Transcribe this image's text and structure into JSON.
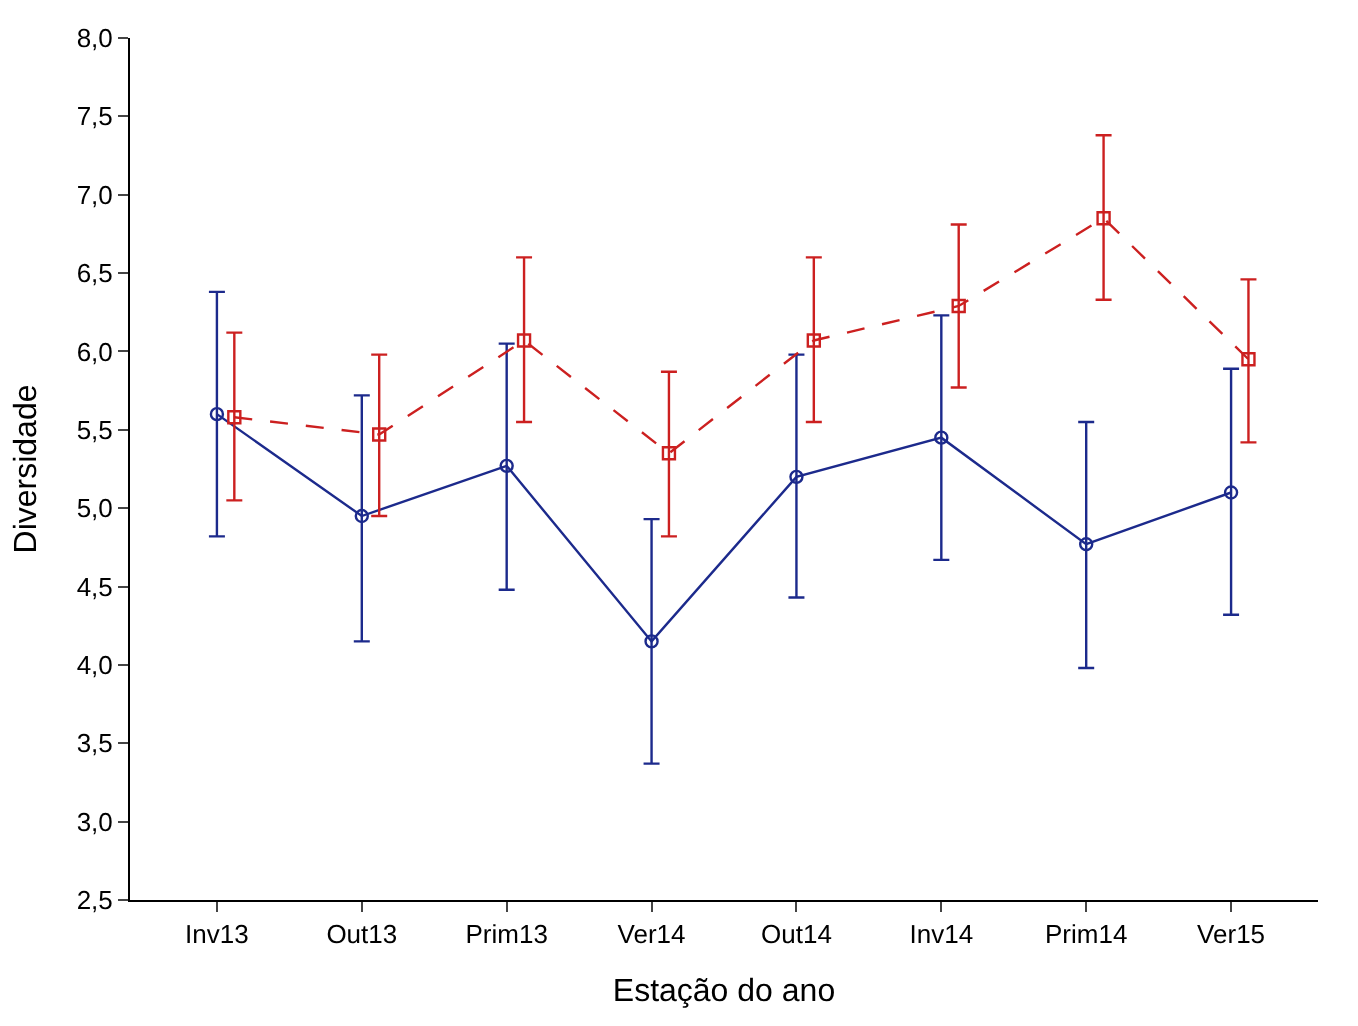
{
  "chart_data": {
    "type": "line",
    "xlabel": "Estação do ano",
    "ylabel": "Diversidade",
    "categories": [
      "Inv13",
      "Out13",
      "Prim13",
      "Ver14",
      "Out14",
      "Inv14",
      "Prim14",
      "Ver15"
    ],
    "ylim": [
      2.5,
      8.0
    ],
    "yticks": [
      {
        "value": 2.5,
        "label": "2,5"
      },
      {
        "value": 3.0,
        "label": "3,0"
      },
      {
        "value": 3.5,
        "label": "3,5"
      },
      {
        "value": 4.0,
        "label": "4,0"
      },
      {
        "value": 4.5,
        "label": "4,5"
      },
      {
        "value": 5.0,
        "label": "5,0"
      },
      {
        "value": 5.5,
        "label": "5,5"
      },
      {
        "value": 6.0,
        "label": "6,0"
      },
      {
        "value": 6.5,
        "label": "6,5"
      },
      {
        "value": 7.0,
        "label": "7,0"
      },
      {
        "value": 7.5,
        "label": "7,5"
      },
      {
        "value": 8.0,
        "label": "8,0"
      }
    ],
    "series": [
      {
        "color": "#1c2a8c",
        "marker": "circle",
        "line_style": "solid",
        "values": [
          5.6,
          4.95,
          5.27,
          4.15,
          5.2,
          5.45,
          4.77,
          5.1
        ],
        "errors": [
          [
            4.82,
            6.38
          ],
          [
            4.15,
            5.72
          ],
          [
            4.48,
            6.05
          ],
          [
            3.37,
            4.93
          ],
          [
            4.43,
            5.98
          ],
          [
            4.67,
            6.23
          ],
          [
            3.98,
            5.55
          ],
          [
            4.32,
            5.89
          ]
        ]
      },
      {
        "color": "#cc2020",
        "marker": "square",
        "line_style": "dashed",
        "values": [
          5.58,
          5.47,
          6.07,
          5.35,
          6.07,
          6.29,
          6.85,
          5.95
        ],
        "errors": [
          [
            5.05,
            6.12
          ],
          [
            4.95,
            5.98
          ],
          [
            5.55,
            6.6
          ],
          [
            4.82,
            5.87
          ],
          [
            5.55,
            6.6
          ],
          [
            5.77,
            6.81
          ],
          [
            6.33,
            7.38
          ],
          [
            5.42,
            6.46
          ]
        ]
      }
    ]
  }
}
